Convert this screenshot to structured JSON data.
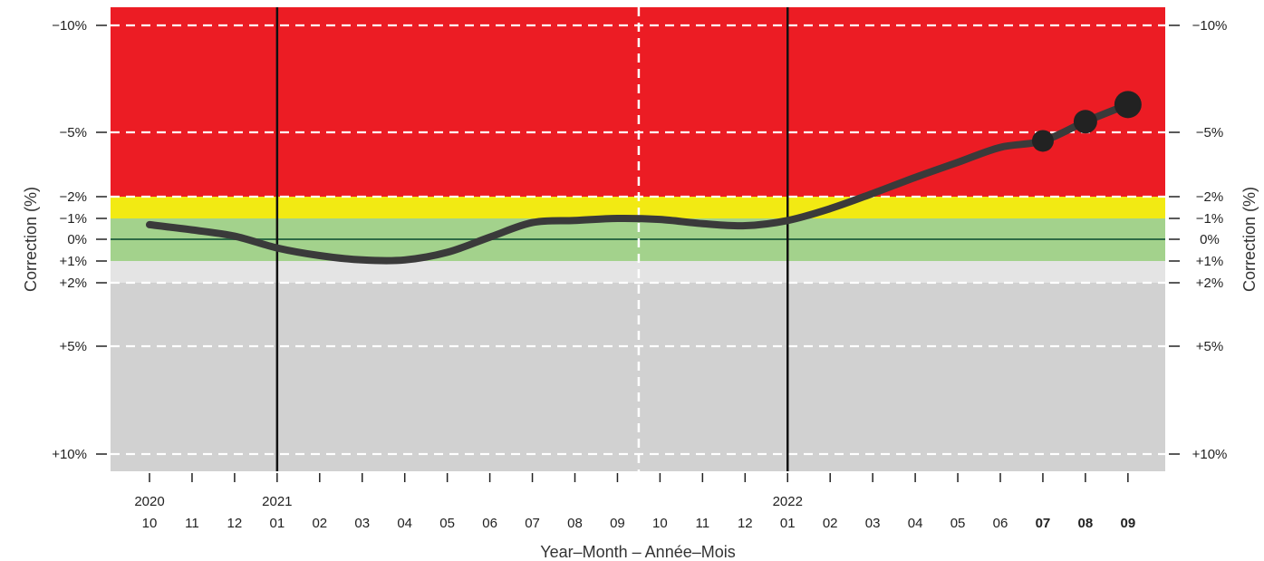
{
  "chart_data": {
    "type": "line",
    "title": "",
    "xlabel": "Year–Month – Année–Mois",
    "ylabel": "Correction (%)",
    "y_axis_reversed": true,
    "y_scale": "nonlinear piecewise",
    "y_ticks": [
      {
        "value": -10,
        "label": "−10%"
      },
      {
        "value": -5,
        "label": "−5%"
      },
      {
        "value": -2,
        "label": "−2%"
      },
      {
        "value": -1,
        "label": "−1%"
      },
      {
        "value": 0,
        "label": "0%"
      },
      {
        "value": 1,
        "label": "+1%"
      },
      {
        "value": 2,
        "label": "+2%"
      },
      {
        "value": 5,
        "label": "+5%"
      },
      {
        "value": 10,
        "label": "+10%"
      }
    ],
    "ylim": [
      -11,
      11
    ],
    "bands": [
      {
        "from": -11,
        "to": -2,
        "color": "#ec1c24"
      },
      {
        "from": -2,
        "to": -1,
        "color": "#f2ea13"
      },
      {
        "from": -1,
        "to": 1,
        "color": "#a3d28c"
      },
      {
        "from": 1,
        "to": 2,
        "color": "#e4e4e4"
      },
      {
        "from": 2,
        "to": 11,
        "color": "#d1d1d1"
      }
    ],
    "x_ticks": [
      {
        "month": "10",
        "year": "2020"
      },
      {
        "month": "11"
      },
      {
        "month": "12"
      },
      {
        "month": "01",
        "year": "2021"
      },
      {
        "month": "02"
      },
      {
        "month": "03"
      },
      {
        "month": "04"
      },
      {
        "month": "05"
      },
      {
        "month": "06"
      },
      {
        "month": "07"
      },
      {
        "month": "08"
      },
      {
        "month": "09"
      },
      {
        "month": "10"
      },
      {
        "month": "11"
      },
      {
        "month": "12"
      },
      {
        "month": "01",
        "year": "2022"
      },
      {
        "month": "02"
      },
      {
        "month": "03"
      },
      {
        "month": "04"
      },
      {
        "month": "05"
      },
      {
        "month": "06"
      },
      {
        "month": "07",
        "highlight": true
      },
      {
        "month": "08",
        "highlight": true
      },
      {
        "month": "09",
        "highlight": true
      }
    ],
    "year_lines": [
      "2021-01",
      "2022-01"
    ],
    "dashed_x_lines": [
      "2021-09/2021-10"
    ],
    "series": [
      {
        "color": "#3a3a3a",
        "x": [
          "2020-10",
          "2020-11",
          "2020-12",
          "2021-01",
          "2021-02",
          "2021-03",
          "2021-04",
          "2021-05",
          "2021-06",
          "2021-07",
          "2021-08",
          "2021-09",
          "2021-10",
          "2021-11",
          "2021-12",
          "2022-01",
          "2022-02",
          "2022-03",
          "2022-04",
          "2022-05",
          "2022-06",
          "2022-07",
          "2022-08",
          "2022-09"
        ],
        "y": [
          -0.7,
          -0.45,
          -0.15,
          0.4,
          0.75,
          0.95,
          0.95,
          0.6,
          -0.1,
          -0.8,
          -0.9,
          -1.0,
          -0.95,
          -0.75,
          -0.65,
          -0.9,
          -1.45,
          -2.15,
          -2.9,
          -3.6,
          -4.3,
          -4.6,
          -5.5,
          -6.3
        ]
      }
    ],
    "markers": [
      {
        "x": "2022-07",
        "y": -4.6
      },
      {
        "x": "2022-08",
        "y": -5.5
      },
      {
        "x": "2022-09",
        "y": -6.3
      }
    ],
    "colors": {
      "line": "#3a3a3a",
      "highlight_month": "#1e6b2e",
      "zero_line": "#2e6b45"
    }
  }
}
